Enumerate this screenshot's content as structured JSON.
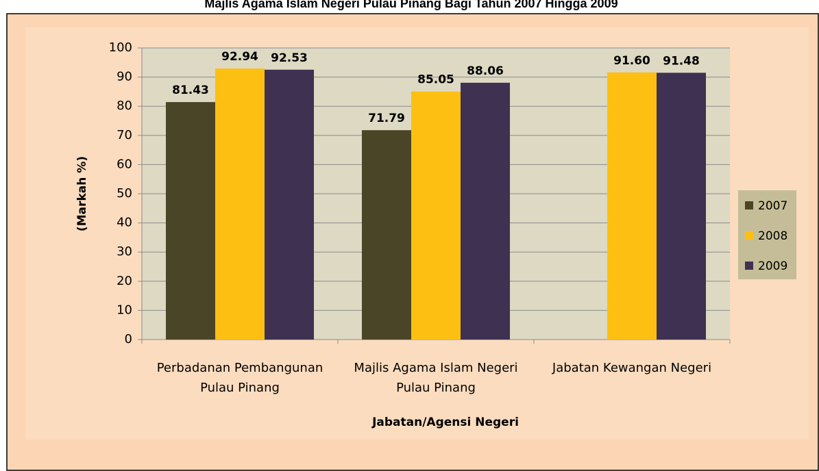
{
  "chart_data": {
    "type": "bar",
    "title": "Majlis Agama Islam Negeri Pulau Pinang Bagi Tahun 2007 Hingga 2009",
    "xlabel": "Jabatan/Agensi Negeri",
    "ylabel": "(Markah %)",
    "categories": [
      "Perbadanan Pembangunan Pulau Pinang",
      "Majlis Agama  Islam Negeri Pulau Pinang",
      "Jabatan  Kewangan  Negeri"
    ],
    "series": [
      {
        "name": "2007",
        "color": "#4a4526",
        "values": [
          81.43,
          71.79,
          null
        ],
        "value_labels": [
          "81.43",
          "71.79",
          null
        ]
      },
      {
        "name": "2008",
        "color": "#fdbf12",
        "values": [
          92.94,
          85.05,
          91.6
        ],
        "value_labels": [
          "92.94",
          "85.05",
          "91.60"
        ]
      },
      {
        "name": "2009",
        "color": "#3f3151",
        "values": [
          92.53,
          88.06,
          91.48
        ],
        "value_labels": [
          "92.53",
          "88.06",
          "91.48"
        ]
      }
    ],
    "ylim": [
      0,
      100
    ],
    "yticks": [
      0,
      10,
      20,
      30,
      40,
      50,
      60,
      70,
      80,
      90,
      100
    ],
    "grid": true,
    "legend": "right"
  }
}
